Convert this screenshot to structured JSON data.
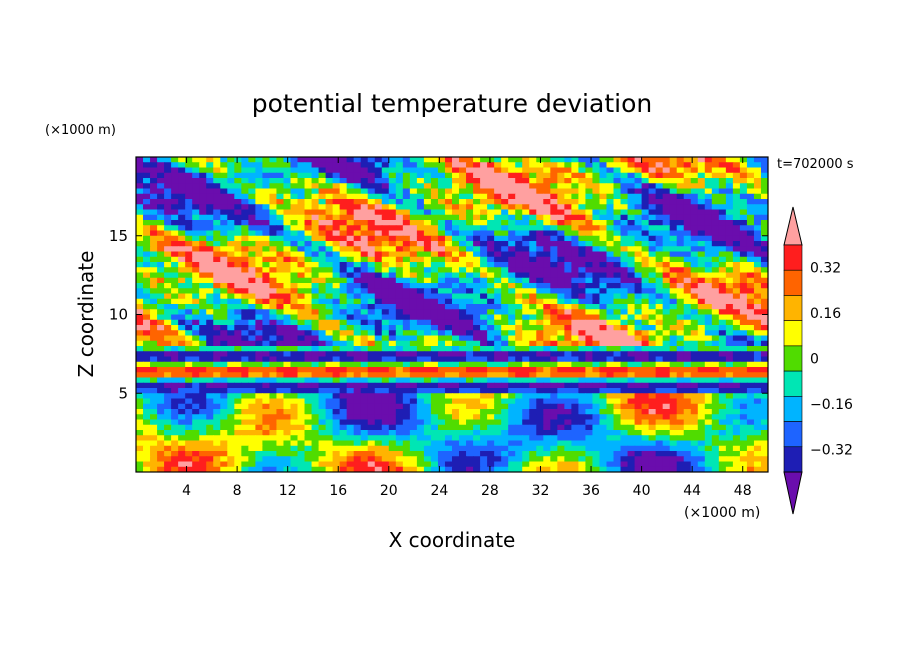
{
  "chart_data": {
    "type": "heatmap",
    "title": "potential temperature deviation",
    "time_label": "t=702000 s",
    "xlabel": "X coordinate",
    "ylabel": "Z coordinate",
    "x_unit": "(×1000 m)",
    "y_unit": "(×1000 m)",
    "xlim": [
      0,
      50
    ],
    "ylim": [
      0,
      20
    ],
    "x_ticks": [
      4,
      8,
      12,
      16,
      20,
      24,
      28,
      32,
      36,
      40,
      44,
      48
    ],
    "y_ticks": [
      5,
      10,
      15
    ],
    "colorbar": {
      "levels": [
        -0.4,
        -0.32,
        -0.24,
        -0.16,
        -0.08,
        0,
        0.08,
        0.16,
        0.24,
        0.32,
        0.4
      ],
      "labels": [
        "0.32",
        "0.16",
        "0",
        "−0.16",
        "−0.32"
      ],
      "label_values": [
        0.32,
        0.16,
        0,
        -0.16,
        -0.32
      ],
      "colors": [
        "#6a0dad",
        "#1e1eb4",
        "#1e64ff",
        "#00b4ff",
        "#00e6b4",
        "#50dc00",
        "#ffff00",
        "#ffb400",
        "#ff6400",
        "#ff1e1e",
        "#ffa0a0"
      ],
      "extend": "both"
    },
    "regions_z_km": {
      "lower_turbulent_layer": [
        0,
        5
      ],
      "stable_stripe_layer": [
        6,
        8
      ],
      "upper_mixed_layer": [
        8,
        20
      ]
    }
  }
}
